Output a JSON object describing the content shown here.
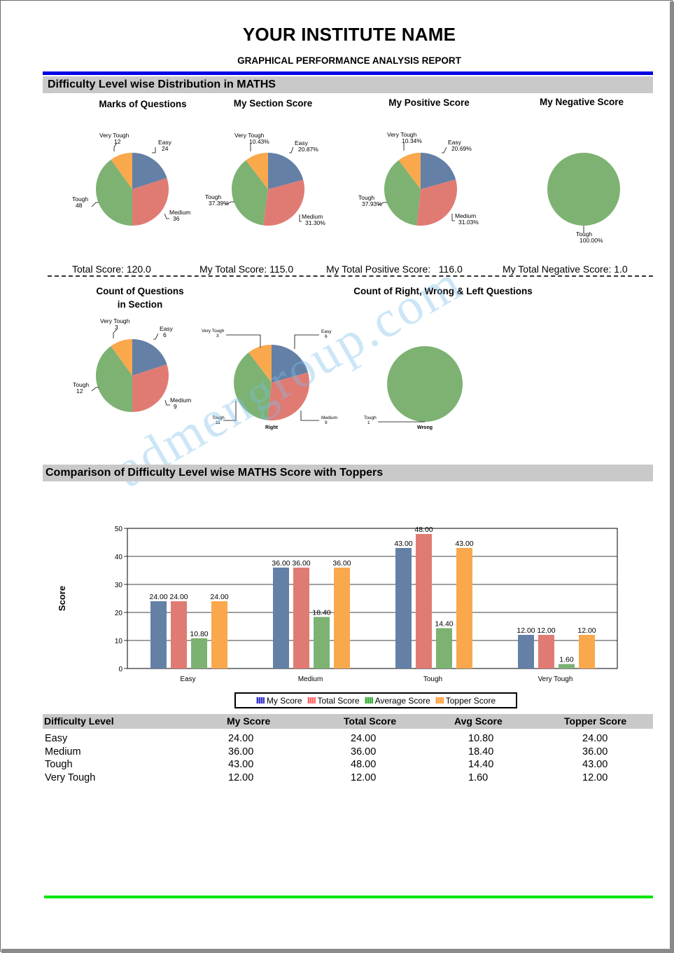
{
  "header": {
    "institute": "YOUR INSTITUTE NAME",
    "report": "GRAPHICAL PERFORMANCE ANALYSIS REPORT"
  },
  "section1": {
    "title": "Difficulty Level wise Distribution in MATHS",
    "dashed_divider": true
  },
  "colors": {
    "easy": "#6480a6",
    "medium": "#e07b74",
    "tough": "#7db272",
    "very_tough": "#f9a84c",
    "header_bar": "#c9c9c9",
    "top_rule": "#0000e6",
    "bottom_rule": "#00e600"
  },
  "totals": {
    "total_score": "Total Score: 120.0",
    "my_total_score": "My Total Score: 115.0",
    "my_total_positive": "My Total Positive Score:   116.0",
    "my_total_negative": "My Total Negative Score: 1.0"
  },
  "section2": {
    "title": "Comparison of Difficulty Level wise MATHS Score with Toppers"
  },
  "chart_data": [
    {
      "type": "pie",
      "title": "Marks of Questions",
      "slices": [
        {
          "label": "Easy",
          "value": 24,
          "value_label": "24",
          "color": "#6480a6"
        },
        {
          "label": "Medium",
          "value": 36,
          "value_label": "36",
          "color": "#e07b74"
        },
        {
          "label": "Tough",
          "value": 48,
          "value_label": "48",
          "color": "#7db272"
        },
        {
          "label": "Very Tough",
          "value": 12,
          "value_label": "12",
          "color": "#f9a84c"
        }
      ]
    },
    {
      "type": "pie",
      "title": "My Section Score",
      "slices": [
        {
          "label": "Easy",
          "value": 20.87,
          "value_label": "20.87%",
          "color": "#6480a6"
        },
        {
          "label": "Medium",
          "value": 31.3,
          "value_label": "31.30%",
          "color": "#e07b74"
        },
        {
          "label": "Tough",
          "value": 37.39,
          "value_label": "37.39%",
          "color": "#7db272"
        },
        {
          "label": "Very Tough",
          "value": 10.43,
          "value_label": "10.43%",
          "color": "#f9a84c"
        }
      ]
    },
    {
      "type": "pie",
      "title": "My Positive Score",
      "slices": [
        {
          "label": "Easy",
          "value": 20.69,
          "value_label": "20.69%",
          "color": "#6480a6"
        },
        {
          "label": "Medium",
          "value": 31.03,
          "value_label": "31.03%",
          "color": "#e07b74"
        },
        {
          "label": "Tough",
          "value": 37.93,
          "value_label": "37.93%",
          "color": "#7db272"
        },
        {
          "label": "Very Tough",
          "value": 10.34,
          "value_label": "10.34%",
          "color": "#f9a84c"
        }
      ]
    },
    {
      "type": "pie",
      "title": "My Negative Score",
      "slices": [
        {
          "label": "Tough",
          "value": 100,
          "value_label": "100.00%",
          "color": "#7db272"
        }
      ]
    },
    {
      "type": "pie",
      "title": "Count of Questions in Section",
      "title_lines": [
        "Count of Questions",
        "in Section"
      ],
      "slices": [
        {
          "label": "Easy",
          "value": 6,
          "value_label": "6",
          "color": "#6480a6"
        },
        {
          "label": "Medium",
          "value": 9,
          "value_label": "9",
          "color": "#e07b74"
        },
        {
          "label": "Tough",
          "value": 12,
          "value_label": "12",
          "color": "#7db272"
        },
        {
          "label": "Very Tough",
          "value": 3,
          "value_label": "3",
          "color": "#f9a84c"
        }
      ]
    },
    {
      "type": "pie",
      "title": "Count of Right, Wrong & Left Questions",
      "caption": "Right",
      "slices": [
        {
          "label": "Easy",
          "value": 6,
          "value_label": "6",
          "color": "#6480a6"
        },
        {
          "label": "Medium",
          "value": 9,
          "value_label": "9",
          "color": "#e07b74"
        },
        {
          "label": "Tough",
          "value": 11,
          "value_label": "11",
          "color": "#7db272"
        },
        {
          "label": "Very Tough",
          "value": 3,
          "value_label": "3",
          "color": "#f9a84c"
        }
      ]
    },
    {
      "type": "pie",
      "caption": "Wrong",
      "slices": [
        {
          "label": "Tough",
          "value": 1,
          "value_label": "1",
          "color": "#7db272"
        }
      ]
    },
    {
      "type": "bar",
      "ylabel": "Score",
      "ylim": [
        0,
        50
      ],
      "yticks": [
        0,
        10,
        20,
        30,
        40,
        50
      ],
      "grid": true,
      "legend_position": "bottom",
      "categories": [
        "Easy",
        "Medium",
        "Tough",
        "Very Tough"
      ],
      "series": [
        {
          "name": "My Score",
          "color": "#6480a6",
          "values": [
            24.0,
            36.0,
            43.0,
            12.0
          ]
        },
        {
          "name": "Total Score",
          "color": "#e07b74",
          "values": [
            24.0,
            36.0,
            48.0,
            12.0
          ]
        },
        {
          "name": "Average Score",
          "color": "#7db272",
          "values": [
            10.8,
            18.4,
            14.4,
            1.6
          ]
        },
        {
          "name": "Topper Score",
          "color": "#f9a84c",
          "values": [
            24.0,
            36.0,
            43.0,
            12.0
          ]
        }
      ]
    }
  ],
  "legend_swatch_colors": [
    "#3333cc",
    "#ff6666",
    "#33aa33",
    "#ff9933"
  ],
  "table": {
    "headers": [
      "Difficulty Level",
      "My Score",
      "Total Score",
      "Avg Score",
      "Topper Score"
    ],
    "rows": [
      [
        "Easy",
        "24.00",
        "24.00",
        "10.80",
        "24.00"
      ],
      [
        "Medium",
        "36.00",
        "36.00",
        "18.40",
        "36.00"
      ],
      [
        "Tough",
        "43.00",
        "48.00",
        "14.40",
        "43.00"
      ],
      [
        "Very Tough",
        "12.00",
        "12.00",
        "1.60",
        "12.00"
      ]
    ]
  },
  "watermark": "admengroup.com"
}
